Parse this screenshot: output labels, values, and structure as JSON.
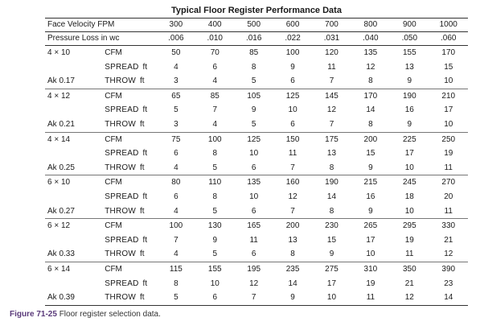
{
  "title": "Typical Floor Register Performance Data",
  "header": {
    "velocity_label": "Face Velocity FPM",
    "pressure_label": "Pressure Loss in wc",
    "velocities": [
      "300",
      "400",
      "500",
      "600",
      "700",
      "800",
      "900",
      "1000"
    ],
    "pressures": [
      ".006",
      ".010",
      ".016",
      ".022",
      ".031",
      ".040",
      ".050",
      ".060"
    ]
  },
  "groups": [
    {
      "size": "4 × 10",
      "ak": "Ak 0.17",
      "cfm": [
        "50",
        "70",
        "85",
        "100",
        "120",
        "135",
        "155",
        "170"
      ],
      "spread": [
        "4",
        "6",
        "8",
        "9",
        "11",
        "12",
        "13",
        "15"
      ],
      "throw": [
        "3",
        "4",
        "5",
        "6",
        "7",
        "8",
        "9",
        "10"
      ]
    },
    {
      "size": "4 × 12",
      "ak": "Ak 0.21",
      "cfm": [
        "65",
        "85",
        "105",
        "125",
        "145",
        "170",
        "190",
        "210"
      ],
      "spread": [
        "5",
        "7",
        "9",
        "10",
        "12",
        "14",
        "16",
        "17"
      ],
      "throw": [
        "3",
        "4",
        "5",
        "6",
        "7",
        "8",
        "9",
        "10"
      ]
    },
    {
      "size": "4 × 14",
      "ak": "Ak 0.25",
      "cfm": [
        "75",
        "100",
        "125",
        "150",
        "175",
        "200",
        "225",
        "250"
      ],
      "spread": [
        "6",
        "8",
        "10",
        "11",
        "13",
        "15",
        "17",
        "19"
      ],
      "throw": [
        "4",
        "5",
        "6",
        "7",
        "8",
        "9",
        "10",
        "11"
      ]
    },
    {
      "size": "6 × 10",
      "ak": "Ak 0.27",
      "cfm": [
        "80",
        "110",
        "135",
        "160",
        "190",
        "215",
        "245",
        "270"
      ],
      "spread": [
        "6",
        "8",
        "10",
        "12",
        "14",
        "16",
        "18",
        "20"
      ],
      "throw": [
        "4",
        "5",
        "6",
        "7",
        "8",
        "9",
        "10",
        "11"
      ]
    },
    {
      "size": "6 × 12",
      "ak": "Ak 0.33",
      "cfm": [
        "100",
        "130",
        "165",
        "200",
        "230",
        "265",
        "295",
        "330"
      ],
      "spread": [
        "7",
        "9",
        "11",
        "13",
        "15",
        "17",
        "19",
        "21"
      ],
      "throw": [
        "4",
        "5",
        "6",
        "8",
        "9",
        "10",
        "11",
        "12"
      ]
    },
    {
      "size": "6 × 14",
      "ak": "Ak 0.39",
      "cfm": [
        "115",
        "155",
        "195",
        "235",
        "275",
        "310",
        "350",
        "390"
      ],
      "spread": [
        "8",
        "10",
        "12",
        "14",
        "17",
        "19",
        "21",
        "23"
      ],
      "throw": [
        "5",
        "6",
        "7",
        "9",
        "10",
        "11",
        "12",
        "14"
      ]
    }
  ],
  "row_labels": {
    "cfm": "CFM",
    "spread": "SPREAD",
    "throw": "THROW",
    "unit": "ft"
  },
  "caption": {
    "figure": "Figure 71-25",
    "text": "Floor register selection data."
  }
}
